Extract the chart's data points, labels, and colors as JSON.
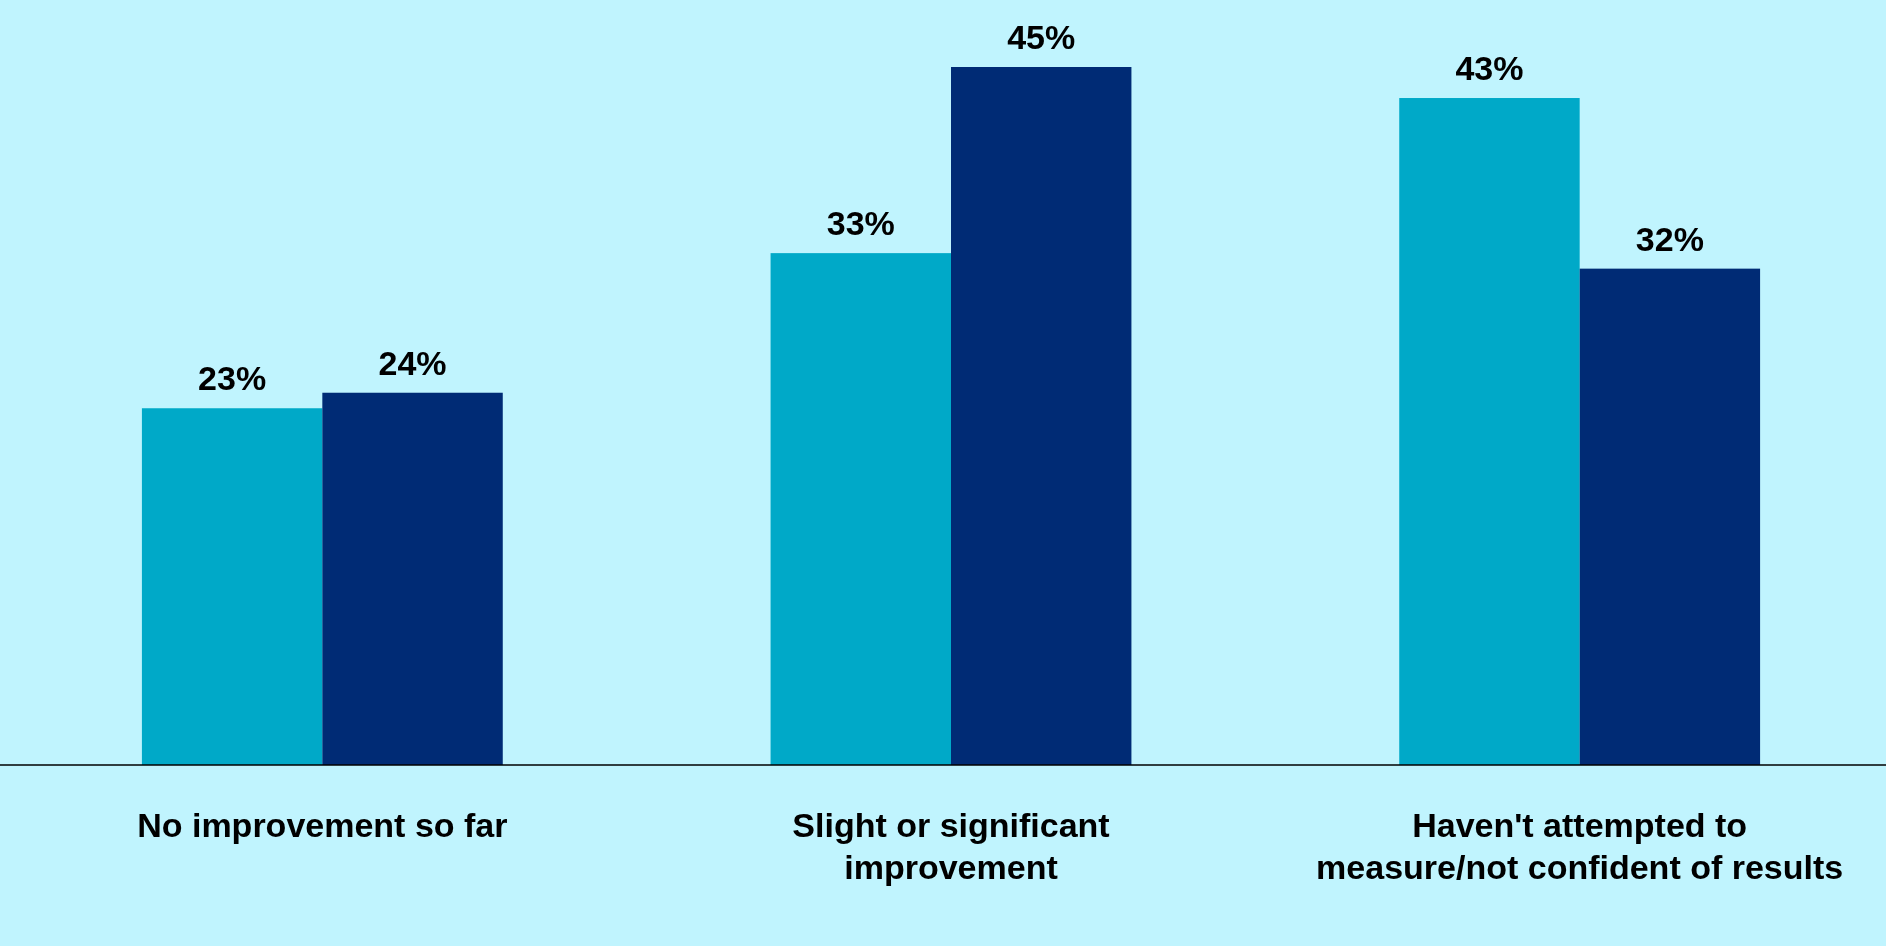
{
  "chart_data": {
    "type": "bar",
    "categories": [
      "No improvement so far",
      "Slight or significant improvement",
      "Haven't attempted to measure/not confident of results"
    ],
    "series": [
      {
        "color": "#00a9c8",
        "values": [
          23,
          33,
          43
        ],
        "value_labels": [
          "23%",
          "33%",
          "43%"
        ]
      },
      {
        "color": "#002b75",
        "values": [
          24,
          45,
          32
        ],
        "value_labels": [
          "24%",
          "45%",
          "32%"
        ]
      }
    ]
  }
}
